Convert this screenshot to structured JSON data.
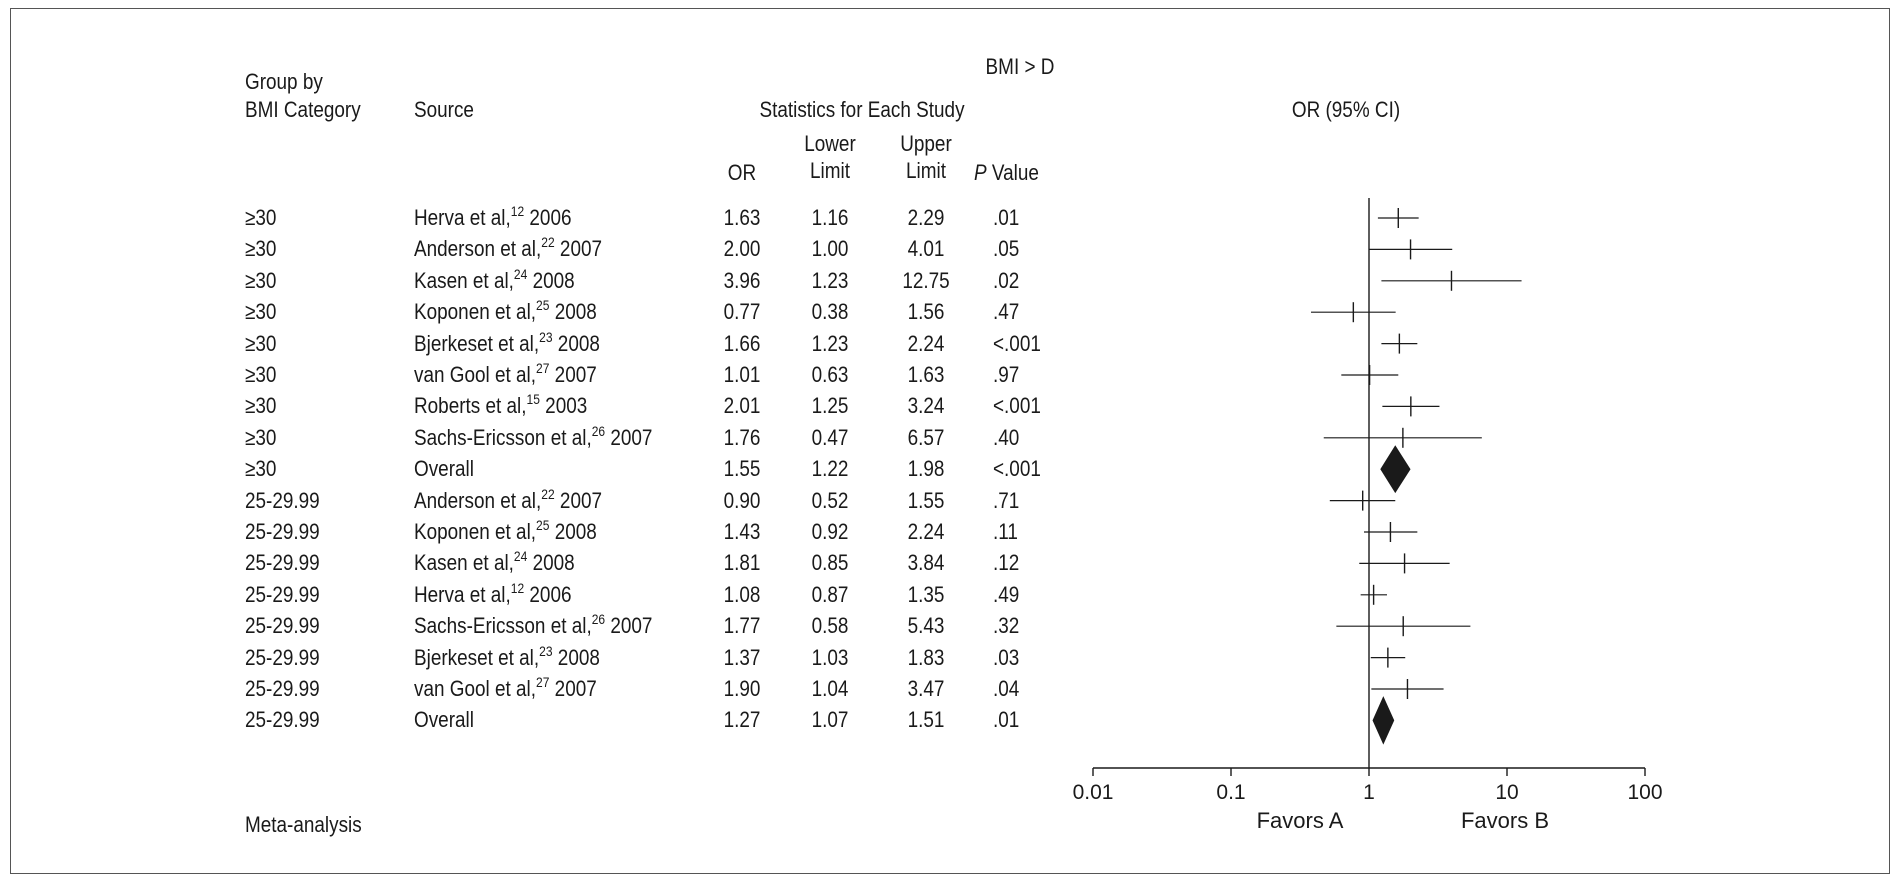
{
  "chart_data": {
    "type": "forest",
    "title": "BMI > D",
    "headers": {
      "group": "Group by",
      "group2": "BMI Category",
      "source": "Source",
      "stats": "Statistics for Each Study",
      "or": "OR",
      "lower1": "Lower",
      "lower2": "Limit",
      "upper1": "Upper",
      "upper2": "Limit",
      "p_italic": "P",
      "p_rest": " Value",
      "plot": "OR (95% CI)"
    },
    "rows": [
      {
        "group": "≥30",
        "author": "Herva et al,",
        "ref": "12",
        "year": " 2006",
        "or": 1.63,
        "lower": 1.16,
        "upper": 2.29,
        "or_text": "1.63",
        "lower_text": "1.16",
        "upper_text": "2.29",
        "p": ".01",
        "overall": false
      },
      {
        "group": "≥30",
        "author": "Anderson et al,",
        "ref": "22",
        "year": " 2007",
        "or": 2.0,
        "lower": 1.0,
        "upper": 4.01,
        "or_text": "2.00",
        "lower_text": "1.00",
        "upper_text": "4.01",
        "p": ".05",
        "overall": false
      },
      {
        "group": "≥30",
        "author": "Kasen et al,",
        "ref": "24",
        "year": " 2008",
        "or": 3.96,
        "lower": 1.23,
        "upper": 12.75,
        "or_text": "3.96",
        "lower_text": "1.23",
        "upper_text": "12.75",
        "p": ".02",
        "overall": false
      },
      {
        "group": "≥30",
        "author": "Koponen et al,",
        "ref": "25",
        "year": " 2008",
        "or": 0.77,
        "lower": 0.38,
        "upper": 1.56,
        "or_text": "0.77",
        "lower_text": "0.38",
        "upper_text": "1.56",
        "p": ".47",
        "overall": false
      },
      {
        "group": "≥30",
        "author": "Bjerkeset et al,",
        "ref": "23",
        "year": " 2008",
        "or": 1.66,
        "lower": 1.23,
        "upper": 2.24,
        "or_text": "1.66",
        "lower_text": "1.23",
        "upper_text": "2.24",
        "p": "<.001",
        "overall": false
      },
      {
        "group": "≥30",
        "author": "van Gool et al,",
        "ref": "27",
        "year": " 2007",
        "or": 1.01,
        "lower": 0.63,
        "upper": 1.63,
        "or_text": "1.01",
        "lower_text": "0.63",
        "upper_text": "1.63",
        "p": ".97",
        "overall": false
      },
      {
        "group": "≥30",
        "author": "Roberts et al,",
        "ref": "15",
        "year": " 2003",
        "or": 2.01,
        "lower": 1.25,
        "upper": 3.24,
        "or_text": "2.01",
        "lower_text": "1.25",
        "upper_text": "3.24",
        "p": "<.001",
        "overall": false
      },
      {
        "group": "≥30",
        "author": "Sachs-Ericsson et al,",
        "ref": "26",
        "year": " 2007",
        "or": 1.76,
        "lower": 0.47,
        "upper": 6.57,
        "or_text": "1.76",
        "lower_text": "0.47",
        "upper_text": "6.57",
        "p": ".40",
        "overall": false
      },
      {
        "group": "≥30",
        "author": "Overall",
        "ref": "",
        "year": "",
        "or": 1.55,
        "lower": 1.22,
        "upper": 1.98,
        "or_text": "1.55",
        "lower_text": "1.22",
        "upper_text": "1.98",
        "p": "<.001",
        "overall": true
      },
      {
        "group": "25-29.99",
        "author": "Anderson et al,",
        "ref": "22",
        "year": " 2007",
        "or": 0.9,
        "lower": 0.52,
        "upper": 1.55,
        "or_text": "0.90",
        "lower_text": "0.52",
        "upper_text": "1.55",
        "p": ".71",
        "overall": false
      },
      {
        "group": "25-29.99",
        "author": "Koponen et al,",
        "ref": "25",
        "year": " 2008",
        "or": 1.43,
        "lower": 0.92,
        "upper": 2.24,
        "or_text": "1.43",
        "lower_text": "0.92",
        "upper_text": "2.24",
        "p": ".11",
        "overall": false
      },
      {
        "group": "25-29.99",
        "author": "Kasen et al,",
        "ref": "24",
        "year": " 2008",
        "or": 1.81,
        "lower": 0.85,
        "upper": 3.84,
        "or_text": "1.81",
        "lower_text": "0.85",
        "upper_text": "3.84",
        "p": ".12",
        "overall": false
      },
      {
        "group": "25-29.99",
        "author": "Herva et al,",
        "ref": "12",
        "year": " 2006",
        "or": 1.08,
        "lower": 0.87,
        "upper": 1.35,
        "or_text": "1.08",
        "lower_text": "0.87",
        "upper_text": "1.35",
        "p": ".49",
        "overall": false
      },
      {
        "group": "25-29.99",
        "author": "Sachs-Ericsson et al,",
        "ref": "26",
        "year": " 2007",
        "or": 1.77,
        "lower": 0.58,
        "upper": 5.43,
        "or_text": "1.77",
        "lower_text": "0.58",
        "upper_text": "5.43",
        "p": ".32",
        "overall": false
      },
      {
        "group": "25-29.99",
        "author": "Bjerkeset et al,",
        "ref": "23",
        "year": " 2008",
        "or": 1.37,
        "lower": 1.03,
        "upper": 1.83,
        "or_text": "1.37",
        "lower_text": "1.03",
        "upper_text": "1.83",
        "p": ".03",
        "overall": false
      },
      {
        "group": "25-29.99",
        "author": "van Gool et al,",
        "ref": "27",
        "year": " 2007",
        "or": 1.9,
        "lower": 1.04,
        "upper": 3.47,
        "or_text": "1.90",
        "lower_text": "1.04",
        "upper_text": "3.47",
        "p": ".04",
        "overall": false
      },
      {
        "group": "25-29.99",
        "author": "Overall",
        "ref": "",
        "year": "",
        "or": 1.27,
        "lower": 1.07,
        "upper": 1.51,
        "or_text": "1.27",
        "lower_text": "1.07",
        "upper_text": "1.51",
        "p": ".01",
        "overall": true
      }
    ],
    "x_scale": "log",
    "xlim": [
      0.01,
      100
    ],
    "x_ticks": [
      0.01,
      0.1,
      1,
      10,
      100
    ],
    "x_tick_labels": [
      "0.01",
      "0.1",
      "1",
      "10",
      "100"
    ],
    "reference_line": 1,
    "favors_left": "Favors A",
    "favors_right": "Favors B",
    "footer": "Meta-analysis",
    "colors": {
      "ink": "#1a1a1a",
      "frame": "#555555"
    }
  }
}
